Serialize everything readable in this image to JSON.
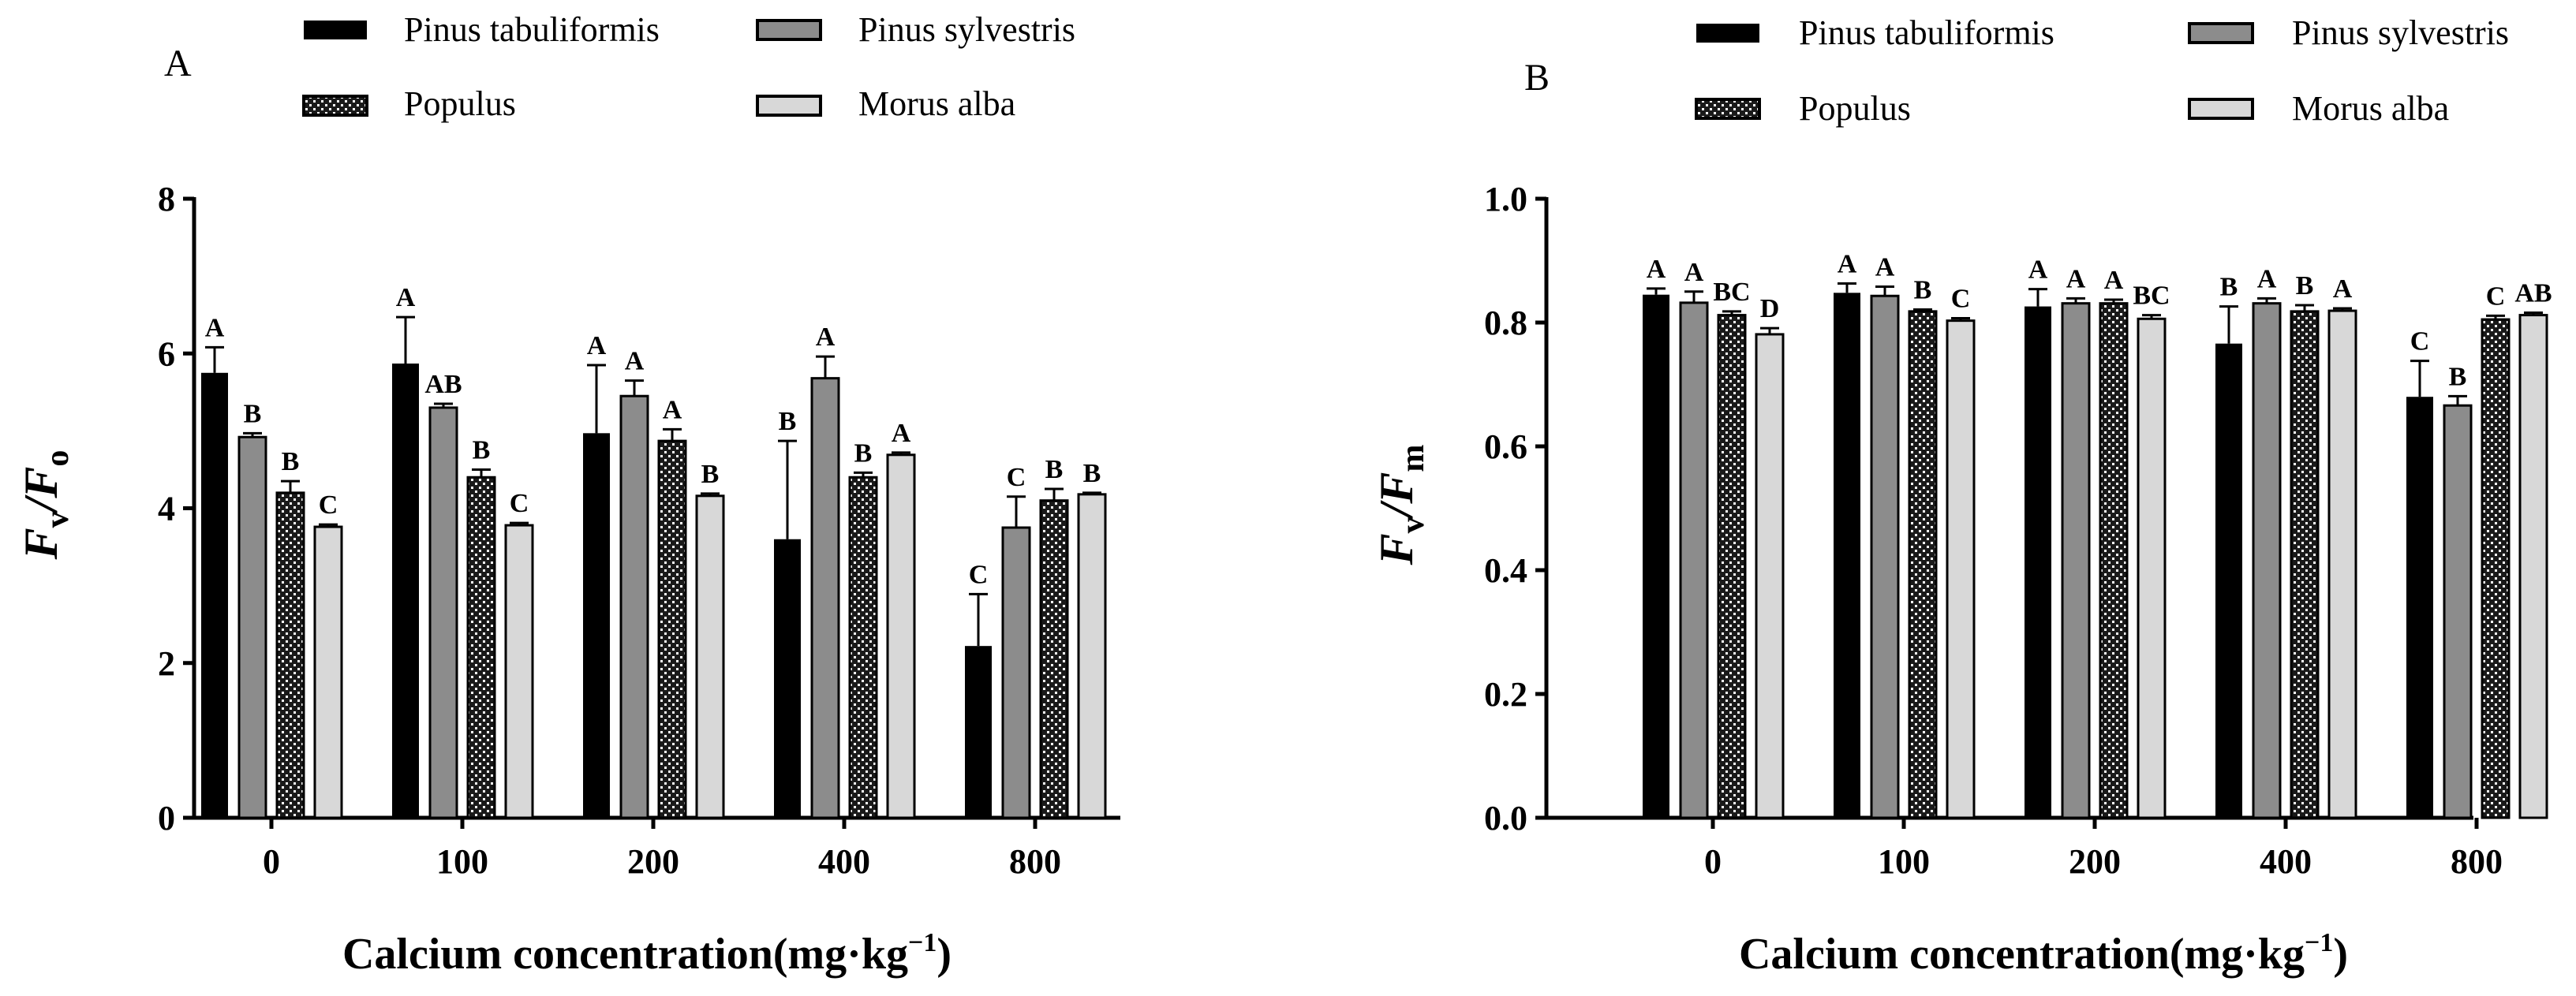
{
  "figure": {
    "panels": [
      "A",
      "B"
    ],
    "legend": [
      {
        "name": "Pinus tabuliformis",
        "fill": "#000000"
      },
      {
        "name": "Pinus sylvestris",
        "fill": "#8c8c8c"
      },
      {
        "name": "Populus",
        "fill": "pattern"
      },
      {
        "name": "Morus alba",
        "fill": "#d8d8d8"
      }
    ],
    "xlabel_main": "Calcium concentration(mg·kg",
    "xlabel_sup": "−1",
    "xlabel_close": ")",
    "ylabel_A": {
      "main": "F",
      "sub1": "v",
      "slash": "/F",
      "sub2": "o"
    },
    "ylabel_B": {
      "main": "F",
      "sub1": "v",
      "slash": "/F",
      "sub2": "m"
    }
  },
  "chart_data": [
    {
      "panel": "A",
      "type": "bar",
      "title": "A",
      "categories": [
        "0",
        "100",
        "200",
        "400",
        "800"
      ],
      "xlabel": "Calcium concentration(mg·kg−1)",
      "ylabel": "Fv/Fo",
      "ylim": [
        0,
        8
      ],
      "yticks": [
        "0",
        "2",
        "4",
        "6",
        "8"
      ],
      "series": [
        {
          "name": "Pinus tabuliformis",
          "values": [
            5.75,
            5.87,
            4.97,
            3.6,
            2.22
          ],
          "errors": [
            0.33,
            0.6,
            0.88,
            1.27,
            0.67
          ],
          "letters": [
            "A",
            "A",
            "A",
            "B",
            "C"
          ]
        },
        {
          "name": "Pinus sylvestris",
          "values": [
            4.92,
            5.3,
            5.45,
            5.68,
            3.75
          ],
          "errors": [
            0.05,
            0.05,
            0.2,
            0.28,
            0.4
          ],
          "letters": [
            "B",
            "AB",
            "A",
            "A",
            "C"
          ]
        },
        {
          "name": "Populus",
          "values": [
            4.2,
            4.4,
            4.87,
            4.4,
            4.1
          ],
          "errors": [
            0.15,
            0.1,
            0.15,
            0.06,
            0.15
          ],
          "letters": [
            "B",
            "B",
            "A",
            "B",
            "B"
          ]
        },
        {
          "name": "Morus alba",
          "values": [
            3.76,
            3.78,
            4.16,
            4.69,
            4.18
          ],
          "errors": [
            0.03,
            0.03,
            0.03,
            0.03,
            0.02
          ],
          "letters": [
            "C",
            "C",
            "B",
            "A",
            "B"
          ]
        }
      ]
    },
    {
      "panel": "B",
      "type": "bar",
      "title": "B",
      "categories": [
        "0",
        "100",
        "200",
        "400",
        "800"
      ],
      "xlabel": "Calcium concentration(mg·kg−1)",
      "ylabel": "Fv/Fm",
      "ylim": [
        0,
        1.0
      ],
      "yticks": [
        "0.0",
        "0.2",
        "0.4",
        "0.6",
        "0.8",
        "1.0"
      ],
      "series": [
        {
          "name": "Pinus tabuliformis",
          "values": [
            0.845,
            0.848,
            0.826,
            0.766,
            0.68
          ],
          "errors": [
            0.01,
            0.015,
            0.028,
            0.06,
            0.058
          ],
          "letters": [
            "A",
            "A",
            "A",
            "B",
            "C"
          ]
        },
        {
          "name": "Pinus sylvestris",
          "values": [
            0.832,
            0.843,
            0.831,
            0.831,
            0.666
          ],
          "errors": [
            0.018,
            0.015,
            0.008,
            0.008,
            0.015
          ],
          "letters": [
            "A",
            "A",
            "A",
            "A",
            "B"
          ]
        },
        {
          "name": "Populus",
          "values": [
            0.812,
            0.818,
            0.831,
            0.818,
            0.805
          ],
          "errors": [
            0.006,
            0.003,
            0.006,
            0.01,
            0.006
          ],
          "letters": [
            "BC",
            "B",
            "A",
            "B",
            "C"
          ]
        },
        {
          "name": "Morus alba",
          "values": [
            0.781,
            0.803,
            0.806,
            0.819,
            0.812
          ],
          "errors": [
            0.01,
            0.004,
            0.006,
            0.004,
            0.004
          ],
          "letters": [
            "D",
            "C",
            "BC",
            "A",
            "AB"
          ]
        }
      ]
    }
  ]
}
